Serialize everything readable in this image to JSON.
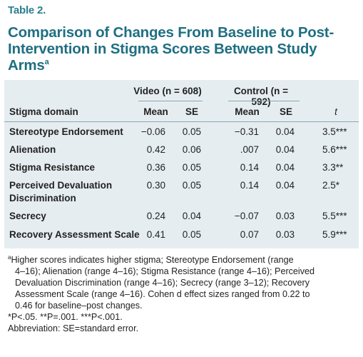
{
  "label": "Table 2.",
  "title": "Comparison of Changes From Baseline to Post-Intervention in Stigma Scores Between Study Arms",
  "title_sup": "a",
  "header": {
    "video_group": "Video (n = 608)",
    "control_group": "Control (n = 592)",
    "domain": "Stigma domain",
    "mean1": "Mean",
    "se1": "SE",
    "mean2": "Mean",
    "se2": "SE",
    "t": "t"
  },
  "rows": [
    {
      "domain": "Stereotype Endorsement",
      "v_mean": "−0.06",
      "v_se": "0.05",
      "c_mean": "−0.31",
      "c_se": "0.04",
      "t": "3.5***"
    },
    {
      "domain": "Alienation",
      "v_mean": "0.42",
      "v_se": "0.06",
      "c_mean": ".007",
      "c_se": "0.04",
      "t": "5.6***"
    },
    {
      "domain": "Stigma Resistance",
      "v_mean": "0.36",
      "v_se": "0.05",
      "c_mean": "0.14",
      "c_se": "0.04",
      "t": "3.3**"
    },
    {
      "domain": "Perceived Devaluation",
      "domain2": "Discrimination",
      "v_mean": "0.30",
      "v_se": "0.05",
      "c_mean": "0.14",
      "c_se": "0.04",
      "t": "2.5*"
    },
    {
      "domain": "Secrecy",
      "v_mean": "0.24",
      "v_se": "0.04",
      "c_mean": "−0.07",
      "c_se": "0.03",
      "t": "5.5***"
    },
    {
      "domain": "Recovery Assessment Scale",
      "v_mean": "0.41",
      "v_se": "0.05",
      "c_mean": "0.07",
      "c_se": "0.03",
      "t": "5.9***"
    }
  ],
  "notes": {
    "a_marker": "a",
    "a_line1": "Higher scores indicates higher stigma; Stereotype Endorsement (range",
    "a_line2": "4–16); Alienation (range 4–16); Stigma Resistance (range 4–16); Perceived",
    "a_line3": "Devaluation Discrimination (range 4–16); Secrecy (range 3–12); Recovery",
    "a_line4": "Assessment Scale (range 4–16). Cohen d effect sizes ranged from 0.22 to",
    "a_line5": "0.46 for baseline–post changes.",
    "p_line": "*P<.05. **P=.001. ***P<.001.",
    "abbrev": "Abbreviation: SE=standard error."
  }
}
